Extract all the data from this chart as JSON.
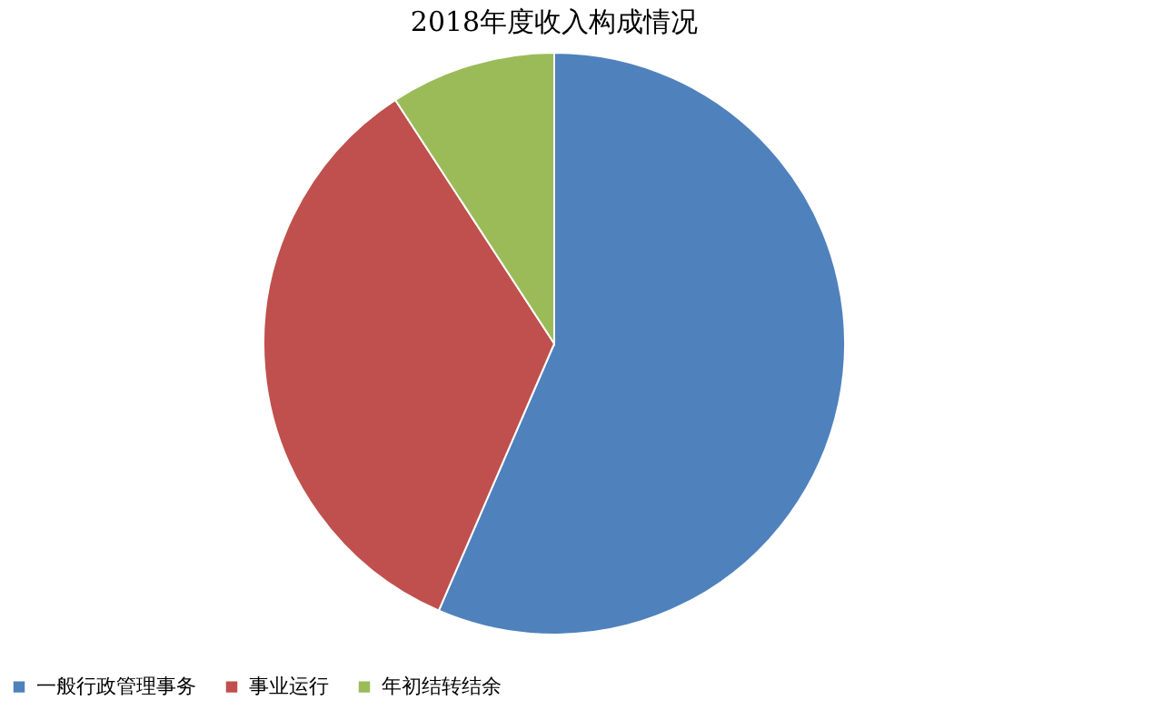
{
  "chart_data": {
    "type": "pie",
    "title": "2018年度收入构成情况",
    "categories": [
      "一般行政管理事务",
      "事业运行",
      "年初结转结余"
    ],
    "values": [
      56.5,
      34.3,
      9.2
    ],
    "colors": [
      "#4f81bd",
      "#c0504d",
      "#9bbb59"
    ],
    "legend": "bottom"
  }
}
